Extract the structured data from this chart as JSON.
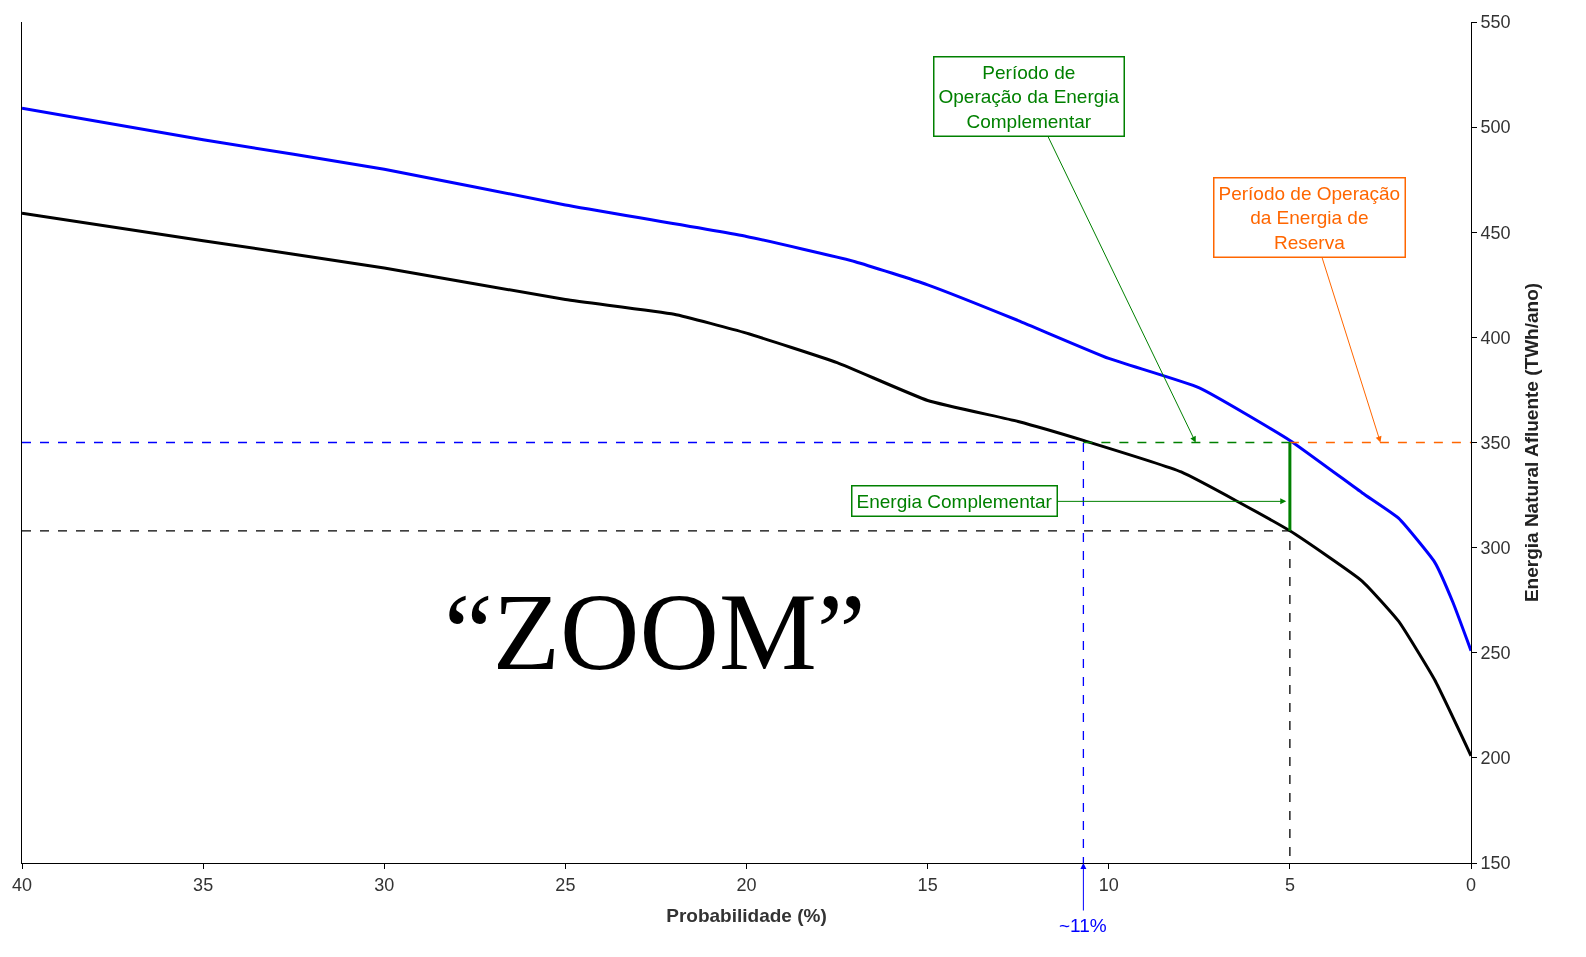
{
  "chart_data": {
    "type": "line",
    "xlabel": "Probabilidade (%)",
    "ylabel": "Energia Natural Afluente (TWh/ano)",
    "xlim": [
      40,
      0
    ],
    "xticks": [
      40,
      35,
      30,
      25,
      20,
      15,
      10,
      5,
      0
    ],
    "ylim": [
      150,
      550
    ],
    "yticks": [
      150,
      200,
      250,
      300,
      350,
      400,
      450,
      500,
      550
    ],
    "marker": "none",
    "series": [
      {
        "color": "#0000ff",
        "line_style": "solid",
        "x": [
          40,
          35,
          30,
          25,
          20,
          17,
          15,
          12.5,
          10,
          7.5,
          5,
          3,
          2,
          1,
          0.5,
          0
        ],
        "values": [
          509,
          494,
          480,
          463,
          448,
          436,
          425,
          408,
          390,
          376,
          351,
          326,
          314,
          293,
          274,
          251
        ]
      },
      {
        "color": "#000000",
        "line_style": "solid",
        "x": [
          40,
          35,
          30,
          25,
          22,
          20,
          17.5,
          15,
          12.5,
          10.7,
          8,
          5,
          3,
          2,
          1,
          0
        ],
        "values": [
          459,
          446,
          433,
          418,
          411,
          402,
          388,
          370,
          360,
          351,
          336,
          308,
          284,
          265,
          237,
          201
        ]
      },
      {
        "color": "#0000ff",
        "line_style": "dashed",
        "x": [
          40,
          10.7,
          10.7
        ],
        "values": [
          350,
          350,
          150
        ]
      },
      {
        "color": "#008000",
        "line_style": "dashed",
        "x": [
          10.7,
          5
        ],
        "values": [
          350,
          350
        ]
      },
      {
        "color": "#ff6600",
        "line_style": "dashed",
        "x": [
          5,
          0
        ],
        "values": [
          350,
          350
        ]
      },
      {
        "color": "#000000",
        "line_style": "dashed",
        "x": [
          40,
          5,
          5
        ],
        "values": [
          308,
          308,
          150
        ]
      },
      {
        "color": "#008000",
        "line_style": "solid",
        "x": [
          5,
          5
        ],
        "values": [
          308,
          350
        ]
      }
    ],
    "annotations": [
      {
        "text": "Período de\nOperação da Energia\nComplementar",
        "x": 7.6,
        "y": 350
      },
      {
        "text": "Período de Operação\nda Energia de\nReserva",
        "x": 2.5,
        "y": 350
      },
      {
        "text": "Energia Complementar",
        "x": 5.1,
        "y": 322
      },
      {
        "text": "~11%",
        "x": 10.7,
        "y": 150
      },
      "“ZOOM”"
    ]
  }
}
